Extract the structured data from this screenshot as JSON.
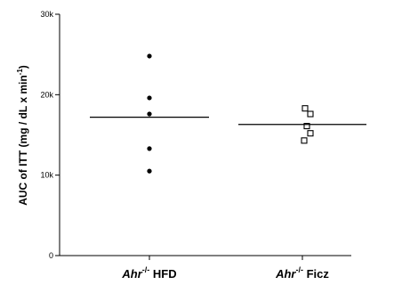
{
  "chart_data": {
    "type": "scatter",
    "title": "",
    "xlabel": "",
    "ylabel": {
      "text": "AUC of ITT (mg / dL x min",
      "superscript": "-1",
      "suffix": ")"
    },
    "ylim": [
      0,
      30000
    ],
    "yticks": [
      {
        "value": 0,
        "label": "0"
      },
      {
        "value": 10000,
        "label": "10k"
      },
      {
        "value": 20000,
        "label": "20k"
      },
      {
        "value": 30000,
        "label": "30k"
      }
    ],
    "categories": [
      {
        "gene": "Ahr",
        "superscript": "-/-",
        "treatment": "HFD"
      },
      {
        "gene": "Ahr",
        "superscript": "-/-",
        "treatment": "Ficz"
      }
    ],
    "series": [
      {
        "category_index": 0,
        "marker": "filled-circle",
        "values": [
          24800,
          19600,
          17600,
          13300,
          10500
        ],
        "mean": 17200
      },
      {
        "category_index": 1,
        "marker": "open-square",
        "values": [
          18300,
          17600,
          16100,
          15200,
          14300
        ],
        "mean": 16300
      }
    ],
    "grid": false,
    "legend": "none"
  }
}
